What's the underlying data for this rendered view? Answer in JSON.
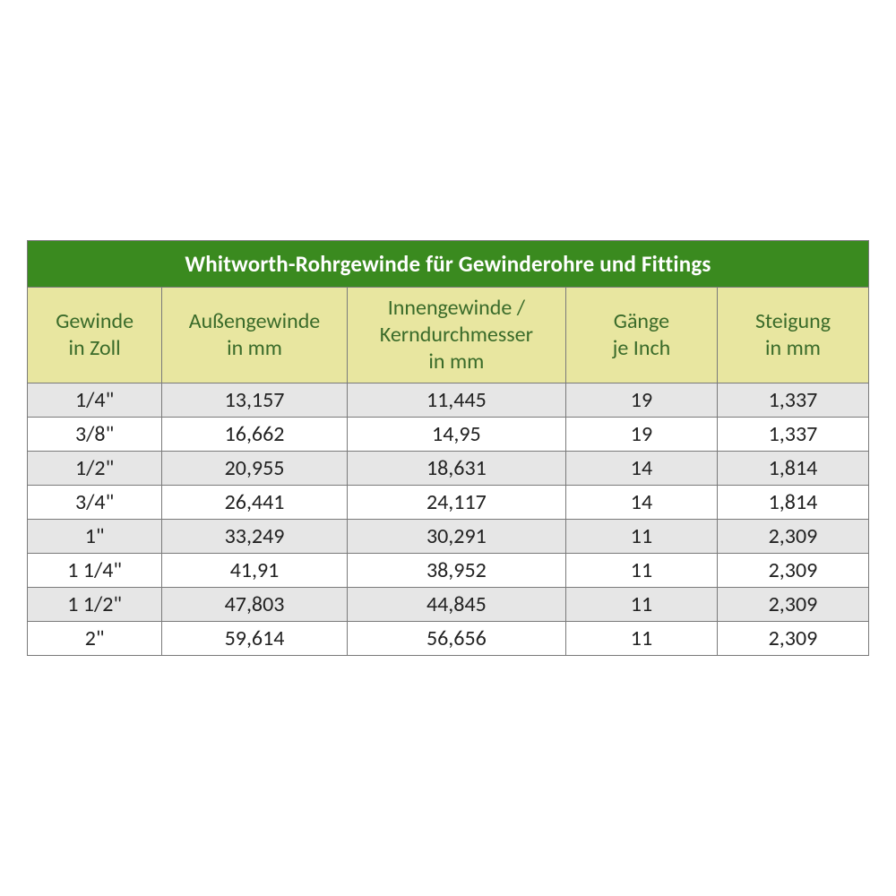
{
  "table": {
    "type": "table",
    "title": "Whitworth-Rohrgewinde für Gewinderohre und Fittings",
    "title_bg": "#3a8a1f",
    "title_color": "#ffffff",
    "title_fontsize": 25,
    "header_bg": "#e8e6a0",
    "header_color": "#3a6b2a",
    "header_fontsize": 24,
    "body_fontsize": 24,
    "row_odd_bg": "#e6e6e6",
    "row_even_bg": "#ffffff",
    "border_color": "#7a7a7a",
    "column_widths_pct": [
      16,
      22,
      26,
      18,
      18
    ],
    "columns": [
      {
        "label_line1": "Gewinde",
        "label_line2": "in Zoll"
      },
      {
        "label_line1": "Außengewinde",
        "label_line2": "in mm"
      },
      {
        "label_line1": "Innengewinde /",
        "label_line2": "Kerndurchmesser",
        "label_line3": "in mm"
      },
      {
        "label_line1": "Gänge",
        "label_line2": "je Inch"
      },
      {
        "label_line1": "Steigung",
        "label_line2": "in mm"
      }
    ],
    "rows": [
      [
        "1/4\"",
        "13,157",
        "11,445",
        "19",
        "1,337"
      ],
      [
        "3/8\"",
        "16,662",
        "14,95",
        "19",
        "1,337"
      ],
      [
        "1/2\"",
        "20,955",
        "18,631",
        "14",
        "1,814"
      ],
      [
        "3/4\"",
        "26,441",
        "24,117",
        "14",
        "1,814"
      ],
      [
        "1\"",
        "33,249",
        "30,291",
        "11",
        "2,309"
      ],
      [
        "1 1/4\"",
        "41,91",
        "38,952",
        "11",
        "2,309"
      ],
      [
        "1 1/2\"",
        "47,803",
        "44,845",
        "11",
        "2,309"
      ],
      [
        "2\"",
        "59,614",
        "56,656",
        "11",
        "2,309"
      ]
    ]
  }
}
